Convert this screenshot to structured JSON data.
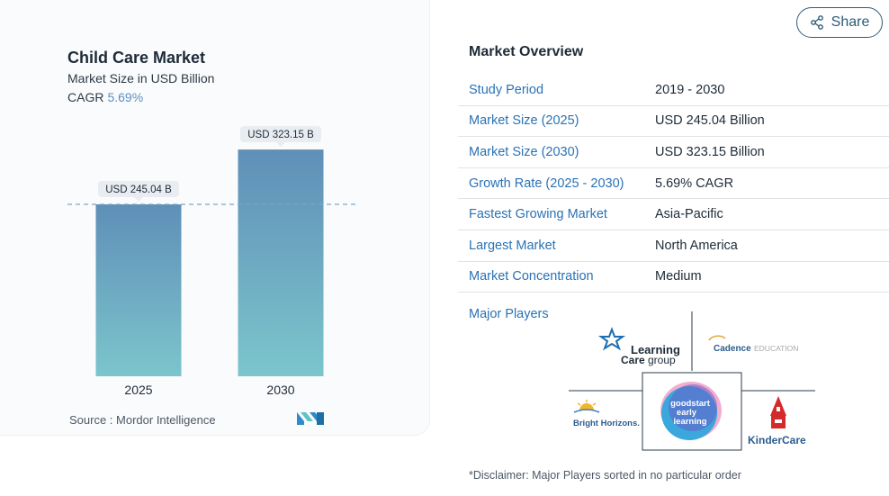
{
  "share": {
    "label": "Share",
    "icon": "share-icon"
  },
  "chart_data": {
    "type": "bar",
    "title": "Child Care Market",
    "subtitle": "Market Size in USD Billion",
    "cagr_label": "CAGR",
    "cagr_value": "5.69%",
    "categories": [
      "2025",
      "2030"
    ],
    "values": [
      245.04,
      323.15
    ],
    "data_labels": [
      "USD 245.04 B",
      "USD 323.15 B"
    ],
    "ylim": [
      0,
      340
    ],
    "reference_line_value": 245.04,
    "bar_gradient": [
      "#5f8fb8",
      "#7cc5cc"
    ],
    "source": "Source :  Mordor Intelligence"
  },
  "overview": {
    "title": "Market Overview",
    "rows": [
      {
        "label": "Study Period",
        "value": "2019 - 2030"
      },
      {
        "label": "Market Size (2025)",
        "value": "USD 245.04 Billion"
      },
      {
        "label": "Market Size (2030)",
        "value": "USD 323.15 Billion"
      },
      {
        "label": "Growth Rate (2025 - 2030)",
        "value": "5.69% CAGR"
      },
      {
        "label": "Fastest Growing Market",
        "value": "Asia-Pacific"
      },
      {
        "label": "Largest Market",
        "value": "North America"
      },
      {
        "label": "Market Concentration",
        "value": "Medium"
      }
    ],
    "players_label": "Major Players",
    "players": [
      {
        "name": "Learning Care group",
        "line1": "Learning",
        "line2": "Care",
        "line3": "group"
      },
      {
        "name": "Cadence Education",
        "part1": "Cadence",
        "part2": "EDUCATION"
      },
      {
        "name": "Bright Horizons",
        "text": "Bright Horizons."
      },
      {
        "name": "goodstart early learning",
        "line1": "goodstart",
        "line2": "early",
        "line3": "learning"
      },
      {
        "name": "KinderCare",
        "text": "KinderCare"
      }
    ],
    "disclaimer": "*Disclaimer: Major Players sorted in no particular order"
  },
  "colors": {
    "link_blue": "#2a72b5",
    "cagr_blue": "#5b8fc0",
    "dark_text": "#1e2b38"
  }
}
